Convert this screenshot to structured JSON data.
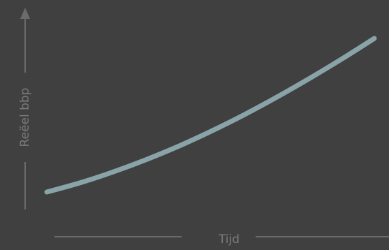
{
  "chart_data": {
    "type": "line",
    "title": "",
    "xlabel": "Tijd",
    "ylabel": "Reëel bbp",
    "x": [
      0,
      0.1,
      0.2,
      0.3,
      0.4,
      0.5,
      0.6,
      0.7,
      0.8,
      0.9,
      1.0
    ],
    "series": [
      {
        "values": [
          0,
          0.059,
          0.129,
          0.208,
          0.296,
          0.394,
          0.5,
          0.615,
          0.737,
          0.865,
          1.0
        ]
      }
    ],
    "xlim": [
      0,
      1
    ],
    "ylim": [
      0,
      1
    ],
    "grid": false,
    "ticks": false,
    "colors": {
      "background": "#404040",
      "line": "#89a4a8",
      "axis": "#6b6b6b",
      "label": "#7a7a7a"
    }
  }
}
